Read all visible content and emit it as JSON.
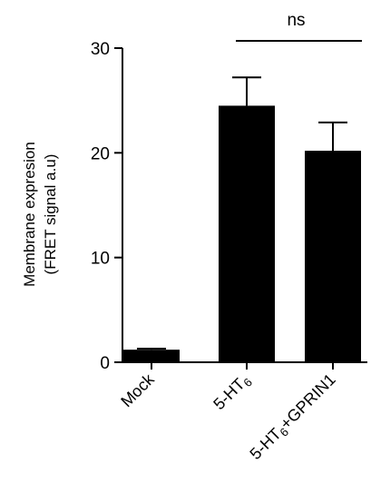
{
  "chart_data": {
    "type": "bar",
    "categories": [
      "Mock",
      "5-HT6",
      "5-HT6+GPRIN1"
    ],
    "category_labels": [
      {
        "main": "Mock",
        "sub": "",
        "rest": ""
      },
      {
        "main": "5-HT",
        "sub": "6",
        "rest": ""
      },
      {
        "main": "5-HT",
        "sub": "6",
        "rest": "+GPRIN1"
      }
    ],
    "values": [
      1.2,
      24.5,
      20.2
    ],
    "errors": [
      0.1,
      2.7,
      2.7
    ],
    "ylabel_line1": "Membrane expresion",
    "ylabel_line2": "(FRET signal a.u)",
    "ylim": [
      0,
      30
    ],
    "yticks": [
      0,
      10,
      20,
      30
    ],
    "bar_color": "#000000",
    "significance": {
      "label": "ns",
      "from_category": 1,
      "to_category": 2
    },
    "grid": false,
    "legend": "none"
  }
}
